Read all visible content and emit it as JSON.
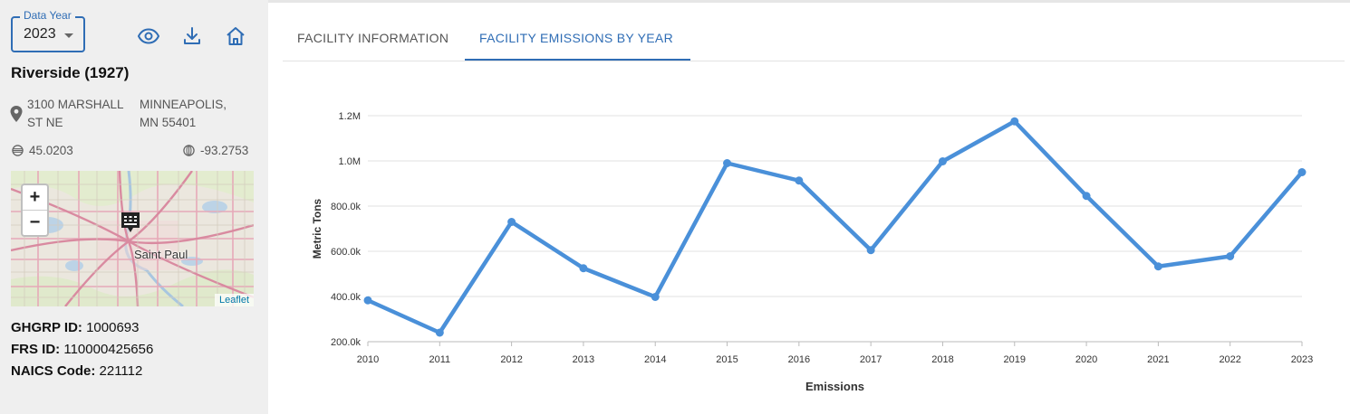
{
  "sidebar": {
    "year_select": {
      "legend": "Data Year",
      "value": "2023"
    },
    "toolbar": {
      "view_icon": "eye-icon",
      "download_icon": "download-icon",
      "home_icon": "home-icon"
    },
    "facility": {
      "name": "Riverside (1927)",
      "street_line1": "3100 MARSHALL",
      "street_line2": "ST NE",
      "city_line1": "MINNEAPOLIS,",
      "city_line2": "MN 55401",
      "latitude": "45.0203",
      "longitude": "-93.2753"
    },
    "map": {
      "zoom_in": "+",
      "zoom_out": "−",
      "city_label": "Saint Paul",
      "attribution": "Leaflet"
    },
    "ids": {
      "ghgrp_label": "GHGRP ID:",
      "ghgrp_value": "1000693",
      "frs_label": "FRS ID:",
      "frs_value": "110000425656",
      "naics_label": "NAICS Code:",
      "naics_value": "221112"
    }
  },
  "tabs": [
    {
      "label": "FACILITY INFORMATION",
      "active": false
    },
    {
      "label": "FACILITY EMISSIONS BY YEAR",
      "active": true
    }
  ],
  "colors": {
    "accent": "#2f6db5",
    "line": "#4a90d9"
  },
  "chart_data": {
    "type": "line",
    "xlabel": "Emissions",
    "ylabel": "Metric Tons",
    "ylim": [
      200000,
      1200000
    ],
    "y_ticks": [
      200000,
      400000,
      600000,
      800000,
      1000000,
      1200000
    ],
    "y_tick_labels": [
      "200.0k",
      "400.0k",
      "600.0k",
      "800.0k",
      "1.0M",
      "1.2M"
    ],
    "grid": true,
    "categories": [
      "2010",
      "2011",
      "2012",
      "2013",
      "2014",
      "2015",
      "2016",
      "2017",
      "2018",
      "2019",
      "2020",
      "2021",
      "2022",
      "2023"
    ],
    "values": [
      383000,
      240000,
      730000,
      525000,
      398000,
      990000,
      913000,
      605000,
      998000,
      1175000,
      845000,
      533000,
      578000,
      950000
    ]
  }
}
